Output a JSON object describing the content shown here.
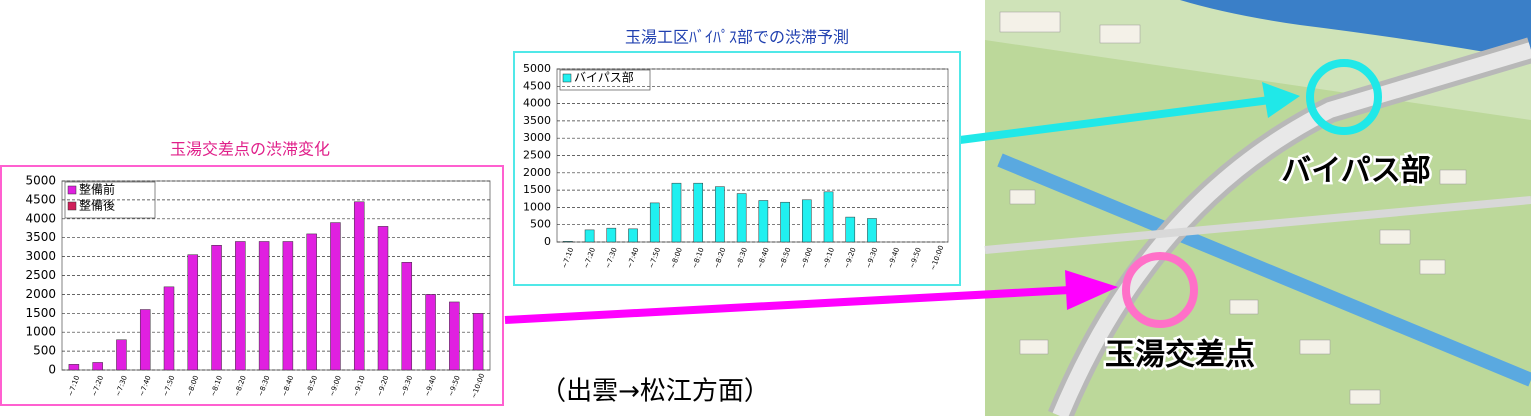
{
  "chart_data": [
    {
      "type": "bar",
      "title": "玉湯交差点の渋滞変化",
      "categories": [
        "~7:10",
        "~7:20",
        "~7:30",
        "~7:40",
        "~7:50",
        "~8:00",
        "~8:10",
        "~8:20",
        "~8:30",
        "~8:40",
        "~8:50",
        "~9:00",
        "~9:10",
        "~9:20",
        "~9:30",
        "~9:40",
        "~9:50",
        "~10:00"
      ],
      "series": [
        {
          "name": "整備前",
          "color": "#e020e0",
          "values": [
            150,
            200,
            800,
            1600,
            2200,
            3050,
            3300,
            3400,
            3400,
            3400,
            3600,
            3900,
            4450,
            3800,
            2850,
            2000,
            1800,
            1500
          ]
        },
        {
          "name": "整備後",
          "color": "#d0205a",
          "values": [
            null,
            null,
            null,
            null,
            null,
            null,
            null,
            null,
            null,
            null,
            null,
            null,
            null,
            null,
            null,
            null,
            null,
            null
          ]
        }
      ],
      "ylim": [
        0,
        5000
      ],
      "yticks": [
        0,
        500,
        1000,
        1500,
        2000,
        2500,
        3000,
        3500,
        4000,
        4500,
        5000
      ],
      "grid": true,
      "legend": "top-left"
    },
    {
      "type": "bar",
      "title": "玉湯工区ﾊﾞｲﾊﾟｽ部での渋滞予測",
      "categories": [
        "~7:10",
        "~7:20",
        "~7:30",
        "~7:40",
        "~7:50",
        "~8:00",
        "~8:10",
        "~8:20",
        "~8:30",
        "~8:40",
        "~8:50",
        "~9:00",
        "~9:10",
        "~9:20",
        "~9:30",
        "~9:40",
        "~9:50",
        "~10:00"
      ],
      "series": [
        {
          "name": "バイパス部",
          "color": "#20f0f0",
          "values": [
            20,
            350,
            400,
            380,
            1130,
            1700,
            1700,
            1600,
            1400,
            1200,
            1150,
            1220,
            1450,
            720,
            680,
            null,
            null,
            null
          ]
        }
      ],
      "ylim": [
        0,
        5000
      ],
      "yticks": [
        0,
        500,
        1000,
        1500,
        2000,
        2500,
        3000,
        3500,
        4000,
        4500,
        5000
      ],
      "grid": true,
      "legend": "top-left"
    }
  ],
  "map_labels": [
    "バイパス部",
    "玉湯交差点"
  ],
  "caption": "（出雲→松江方面）"
}
